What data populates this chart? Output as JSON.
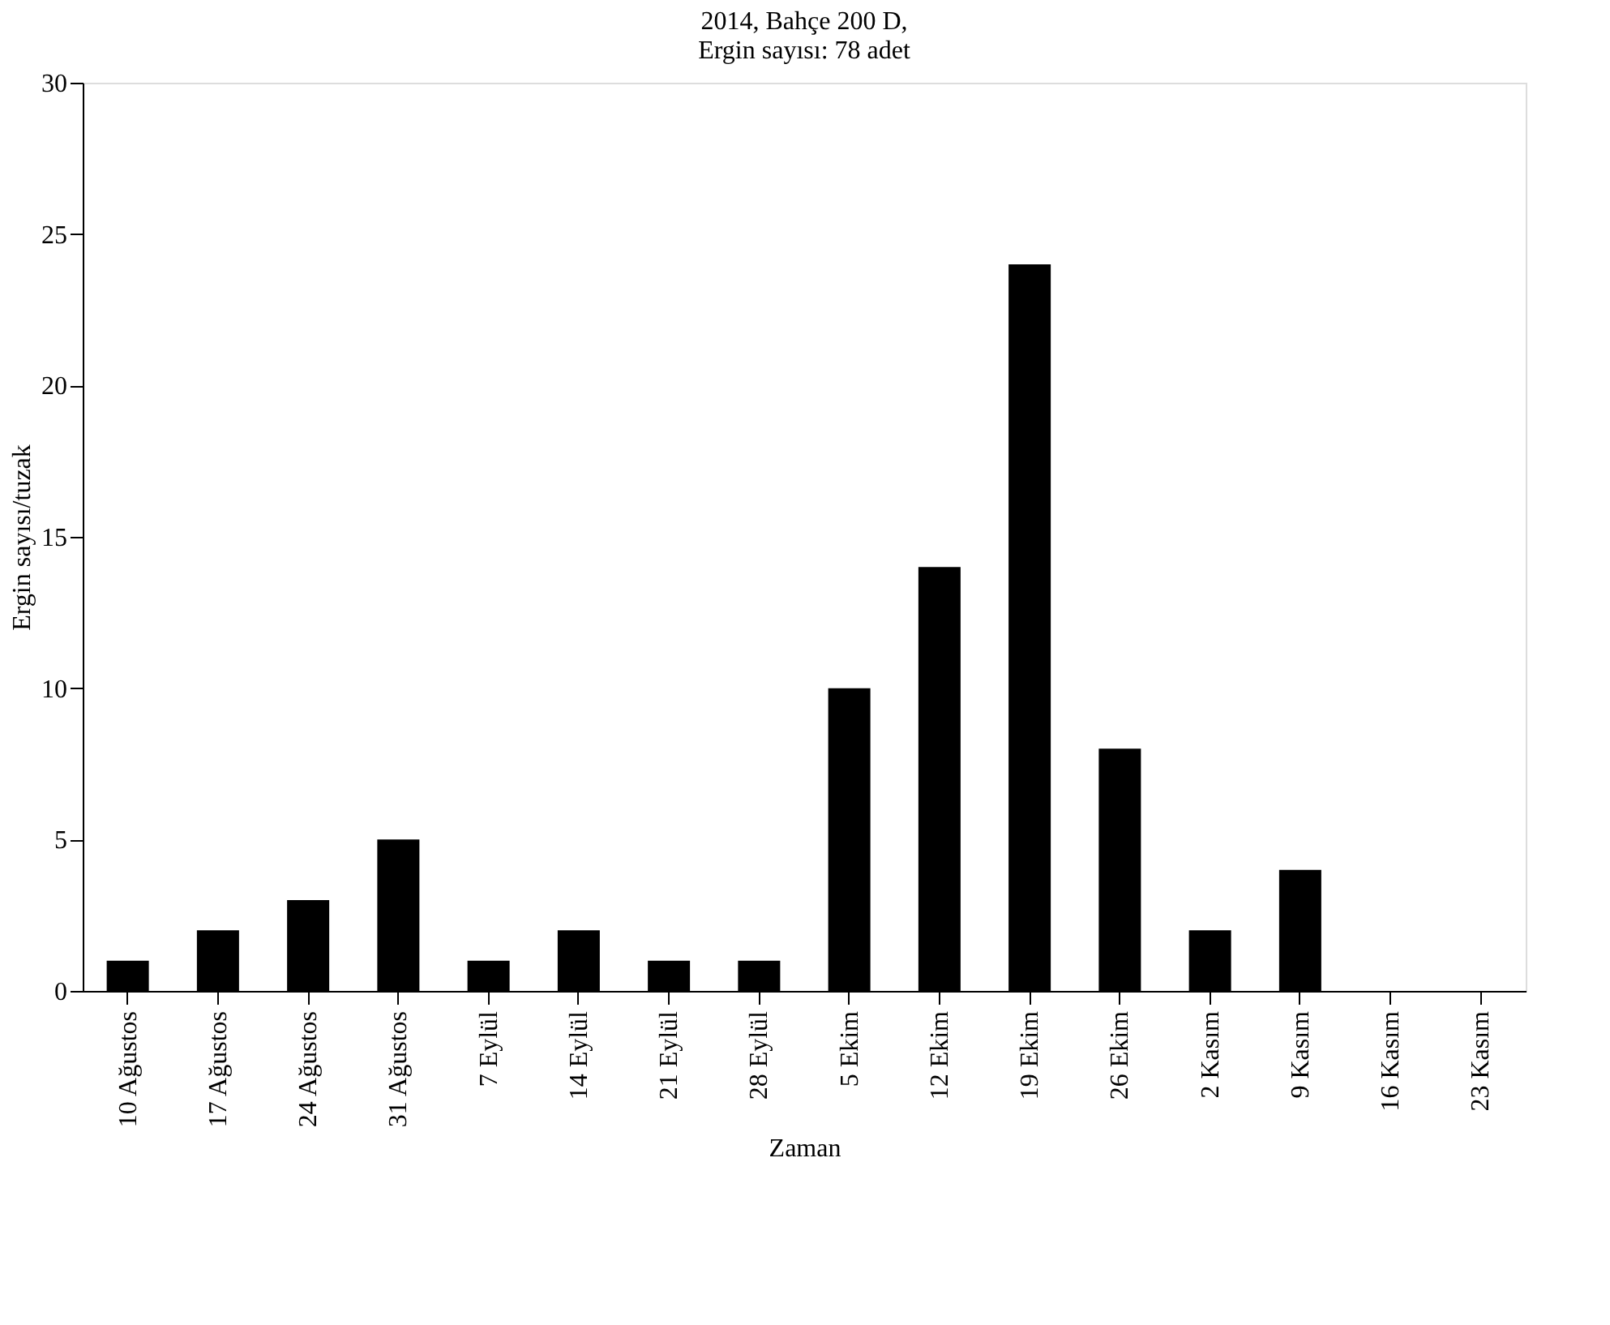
{
  "chart_data": {
    "type": "bar",
    "title": [
      "2014, Bahçe 200 D,",
      "Ergin sayısı: 78 adet"
    ],
    "xlabel": "Zaman",
    "ylabel": "Ergin sayısı/tuzak",
    "categories": [
      "10 Ağustos",
      "17 Ağustos",
      "24 Ağustos",
      "31 Ağustos",
      "7 Eylül",
      "14 Eylül",
      "21 Eylül",
      "28 Eylül",
      "5 Ekim",
      "12 Ekim",
      "19 Ekim",
      "26 Ekim",
      "2 Kasım",
      "9 Kasım",
      "16 Kasım",
      "23 Kasım"
    ],
    "values": [
      1,
      2,
      3,
      5,
      1,
      2,
      1,
      1,
      10,
      14,
      24,
      8,
      2,
      4,
      0,
      0
    ],
    "color": "#000000",
    "ylim": [
      0,
      30
    ],
    "yticks": [
      0,
      5,
      10,
      15,
      20,
      25,
      30
    ],
    "grid": false
  }
}
